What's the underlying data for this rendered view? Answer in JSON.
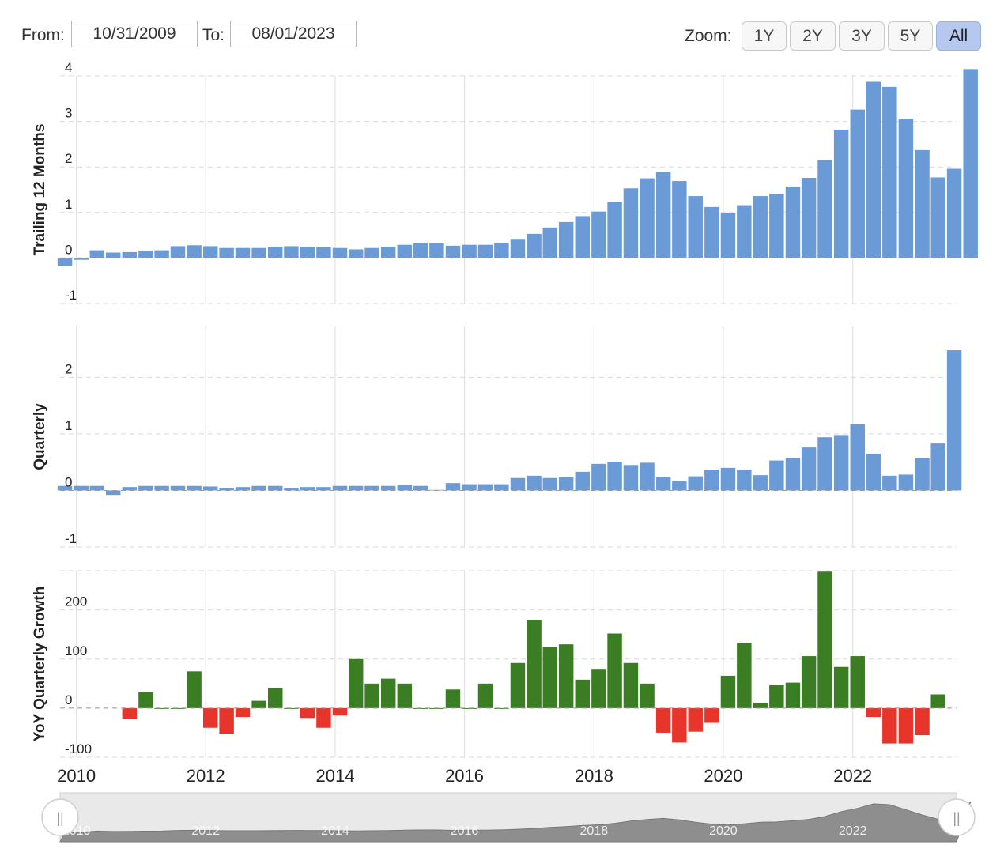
{
  "range": {
    "from_label": "From:",
    "from_value": "10/31/2009",
    "to_label": "To:",
    "to_value": "08/01/2023"
  },
  "zoom": {
    "label": "Zoom:",
    "buttons": [
      "1Y",
      "2Y",
      "3Y",
      "5Y",
      "All"
    ],
    "active": "All"
  },
  "colors": {
    "bar_blue": "#6a9bd6",
    "growth_positive": "#3a7d22",
    "growth_negative": "#e8352b",
    "navigator_fill": "#8e8e8e"
  },
  "chart_data": [
    {
      "type": "bar",
      "ylabel": "Trailing 12 Months",
      "ylim": [
        -1,
        4
      ],
      "yticks": [
        -1,
        0,
        1,
        2,
        3,
        4
      ],
      "grid": true,
      "x_start": "2009-10-31",
      "x_step": "quarter",
      "values": [
        -0.17,
        -0.04,
        0.17,
        0.12,
        0.13,
        0.16,
        0.17,
        0.26,
        0.28,
        0.26,
        0.22,
        0.22,
        0.22,
        0.25,
        0.26,
        0.25,
        0.24,
        0.22,
        0.19,
        0.22,
        0.25,
        0.29,
        0.32,
        0.32,
        0.27,
        0.29,
        0.29,
        0.33,
        0.42,
        0.53,
        0.67,
        0.79,
        0.92,
        1.02,
        1.23,
        1.53,
        1.75,
        1.89,
        1.69,
        1.36,
        1.12,
        0.99,
        1.16,
        1.36,
        1.41,
        1.57,
        1.76,
        2.15,
        2.82,
        3.26,
        3.87,
        3.76,
        3.06,
        2.37,
        1.77,
        1.96,
        4.15
      ]
    },
    {
      "type": "bar",
      "ylabel": "Quarterly",
      "ylim": [
        -1,
        2.9
      ],
      "yticks": [
        -1,
        0,
        1,
        2
      ],
      "grid": true,
      "x_start": "2009-10-31",
      "x_step": "quarter",
      "values": [
        0.08,
        0.08,
        0.08,
        -0.08,
        0.06,
        0.08,
        0.08,
        0.08,
        0.08,
        0.07,
        0.04,
        0.06,
        0.08,
        0.08,
        0.04,
        0.06,
        0.06,
        0.08,
        0.08,
        0.08,
        0.08,
        0.1,
        0.08,
        0.01,
        0.13,
        0.11,
        0.11,
        0.11,
        0.22,
        0.26,
        0.22,
        0.24,
        0.33,
        0.47,
        0.51,
        0.45,
        0.49,
        0.23,
        0.17,
        0.25,
        0.37,
        0.4,
        0.37,
        0.27,
        0.53,
        0.58,
        0.76,
        0.94,
        0.98,
        1.17,
        0.65,
        0.26,
        0.28,
        0.58,
        0.83,
        2.48
      ]
    },
    {
      "type": "bar",
      "ylabel": "YoY Quarterly Growth",
      "ylim": [
        -100,
        280
      ],
      "yticks": [
        -100,
        0,
        100,
        200
      ],
      "grid": true,
      "x_start": "2010-10-31",
      "x_step": "quarter",
      "values": [
        -22,
        33,
        0,
        0,
        75,
        -40,
        -52,
        -18,
        15,
        41,
        0,
        -20,
        -40,
        -15,
        100,
        50,
        60,
        50,
        0,
        0,
        38,
        0,
        50,
        0,
        92,
        180,
        125,
        130,
        58,
        80,
        152,
        92,
        50,
        -50,
        -70,
        -48,
        -30,
        66,
        133,
        10,
        47,
        52,
        106,
        278,
        84,
        106,
        -18,
        -72,
        -72,
        -55,
        28
      ]
    }
  ],
  "xaxis": {
    "ticks": [
      "2010",
      "2012",
      "2014",
      "2016",
      "2018",
      "2020",
      "2022"
    ]
  },
  "navigator": {
    "ticks": [
      "2010",
      "2012",
      "2014",
      "2016",
      "2018",
      "2020",
      "2022"
    ],
    "handle_glyph": "||"
  }
}
